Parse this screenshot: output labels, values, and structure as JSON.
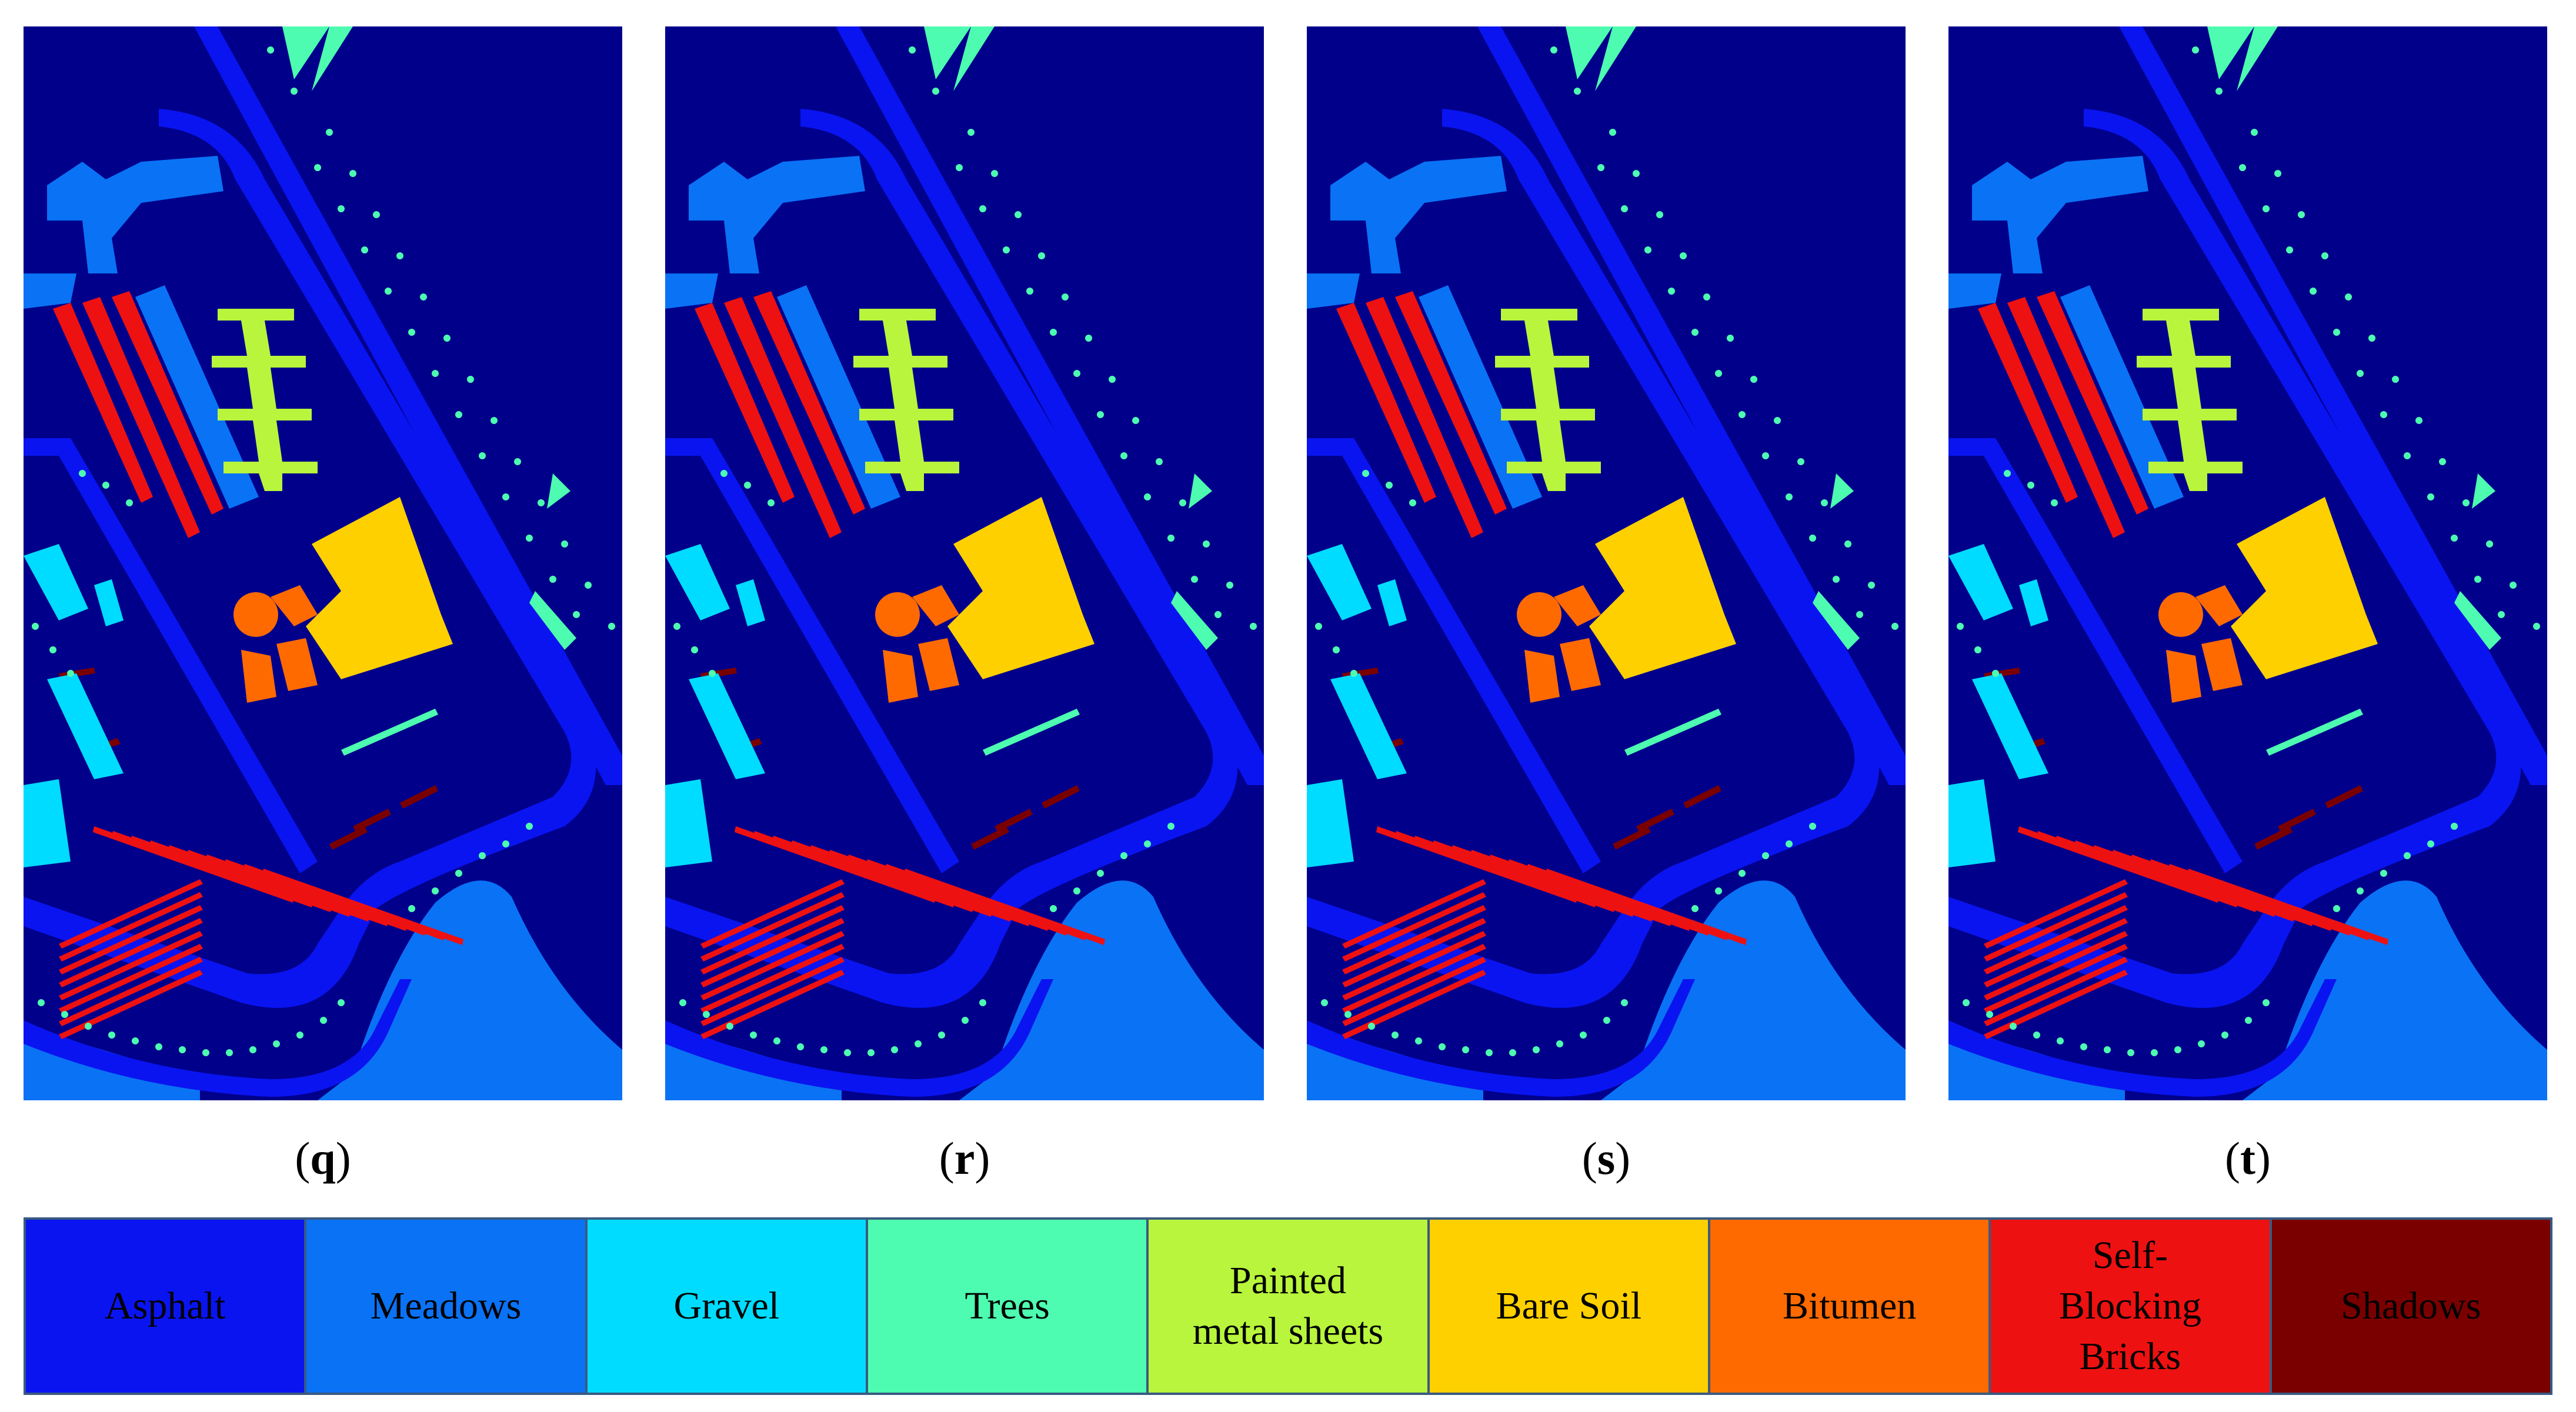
{
  "panels": [
    {
      "label": "q"
    },
    {
      "label": "r"
    },
    {
      "label": "s"
    },
    {
      "label": "t"
    }
  ],
  "colors": {
    "background": "#00008b",
    "asphalt": "#0a14f0",
    "meadows": "#0a72f5",
    "gravel": "#00dcff",
    "trees": "#4dfcb0",
    "painted_metal": "#b8f53c",
    "bare_soil": "#ffd000",
    "bitumen": "#ff6a00",
    "bricks": "#ee1111",
    "shadows": "#7a0000"
  },
  "legend": [
    {
      "label": "Asphalt",
      "color": "#0a14f0"
    },
    {
      "label": "Meadows",
      "color": "#0a72f5"
    },
    {
      "label": "Gravel",
      "color": "#00dcff"
    },
    {
      "label": "Trees",
      "color": "#4dfcb0"
    },
    {
      "label": "Painted\nmetal sheets",
      "color": "#b8f53c"
    },
    {
      "label": "Bare Soil",
      "color": "#ffd000"
    },
    {
      "label": "Bitumen",
      "color": "#ff6a00"
    },
    {
      "label": "Self-\nBlocking\nBricks",
      "color": "#ee1111"
    },
    {
      "label": "Shadows",
      "color": "#7a0000"
    }
  ]
}
